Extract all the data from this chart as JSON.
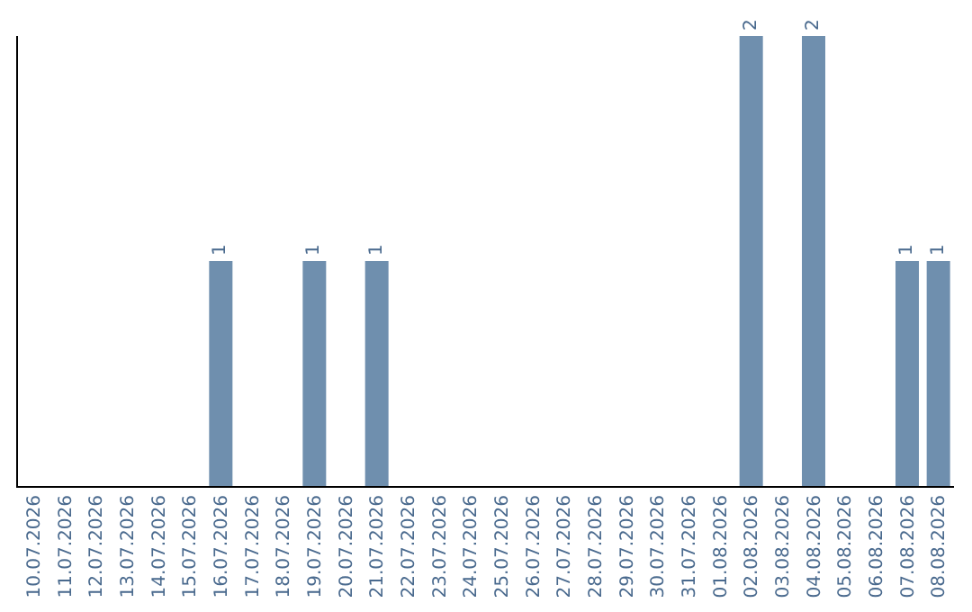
{
  "chart_data": {
    "type": "bar",
    "categories": [
      "10.07.2026",
      "11.07.2026",
      "12.07.2026",
      "13.07.2026",
      "14.07.2026",
      "15.07.2026",
      "16.07.2026",
      "17.07.2026",
      "18.07.2026",
      "19.07.2026",
      "20.07.2026",
      "21.07.2026",
      "22.07.2026",
      "23.07.2026",
      "24.07.2026",
      "25.07.2026",
      "26.07.2026",
      "27.07.2026",
      "28.07.2026",
      "29.07.2026",
      "30.07.2026",
      "31.07.2026",
      "01.08.2026",
      "02.08.2026",
      "03.08.2026",
      "04.08.2026",
      "05.08.2026",
      "06.08.2026",
      "07.08.2026",
      "08.08.2026"
    ],
    "values": [
      0,
      0,
      0,
      0,
      0,
      0,
      1,
      0,
      0,
      1,
      0,
      1,
      0,
      0,
      0,
      0,
      0,
      0,
      0,
      0,
      0,
      0,
      0,
      2,
      0,
      2,
      0,
      0,
      1,
      1
    ],
    "value_labels": [
      null,
      null,
      null,
      null,
      null,
      null,
      "1",
      null,
      null,
      "1",
      null,
      "1",
      null,
      null,
      null,
      null,
      null,
      null,
      null,
      null,
      null,
      null,
      null,
      "2",
      null,
      "2",
      null,
      null,
      "1",
      "1"
    ],
    "color": "#6f8fae",
    "grid": false,
    "legend": false,
    "tick_labels": "x"
  }
}
